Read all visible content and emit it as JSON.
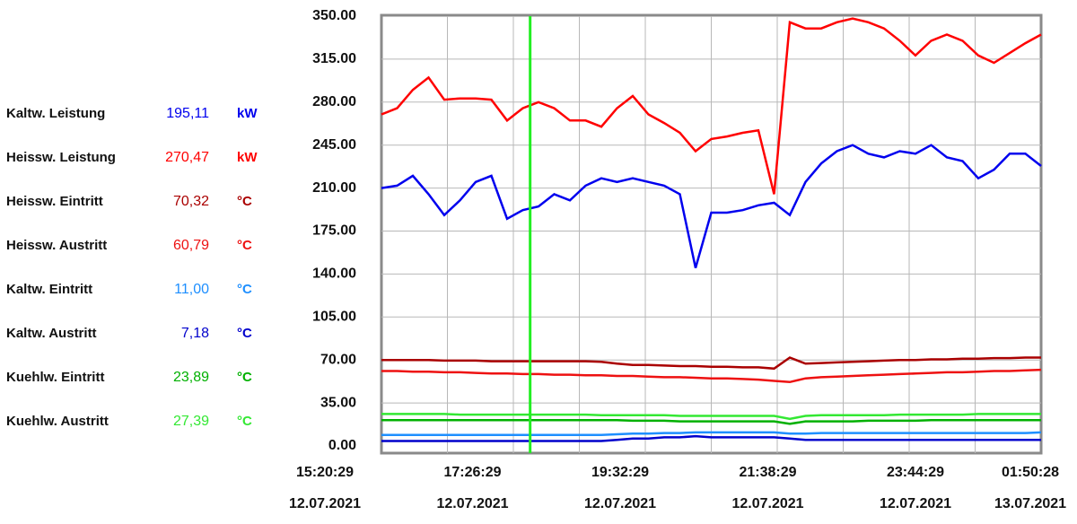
{
  "chart_data": {
    "type": "line",
    "x": [
      "12.07.2021 15:20:29",
      "12.07.2021 15:35:29",
      "12.07.2021 15:50:29",
      "12.07.2021 16:05:29",
      "12.07.2021 16:20:29",
      "12.07.2021 16:35:29",
      "12.07.2021 16:50:29",
      "12.07.2021 17:05:29",
      "12.07.2021 17:20:29",
      "12.07.2021 17:35:29",
      "12.07.2021 17:50:29",
      "12.07.2021 18:05:29",
      "12.07.2021 18:20:29",
      "12.07.2021 18:35:29",
      "12.07.2021 18:50:29",
      "12.07.2021 19:05:29",
      "12.07.2021 19:20:29",
      "12.07.2021 19:35:29",
      "12.07.2021 19:50:29",
      "12.07.2021 20:05:29",
      "12.07.2021 20:20:29",
      "12.07.2021 20:35:29",
      "12.07.2021 20:50:29",
      "12.07.2021 21:05:29",
      "12.07.2021 21:20:29",
      "12.07.2021 21:35:29",
      "12.07.2021 21:50:29",
      "12.07.2021 22:05:29",
      "12.07.2021 22:20:29",
      "12.07.2021 22:35:29",
      "12.07.2021 22:50:29",
      "12.07.2021 23:05:29",
      "12.07.2021 23:20:29",
      "12.07.2021 23:35:29",
      "12.07.2021 23:50:29",
      "13.07.2021 00:05:29",
      "13.07.2021 00:20:29",
      "13.07.2021 00:35:29",
      "13.07.2021 00:50:29",
      "13.07.2021 01:05:29",
      "13.07.2021 01:20:29",
      "13.07.2021 01:35:29",
      "13.07.2021 01:50:28"
    ],
    "series": [
      {
        "name": "Kaltw. Leistung",
        "color": "#0000ee",
        "values": [
          210,
          212,
          220,
          205,
          188,
          200,
          215,
          220,
          185,
          192,
          195,
          205,
          200,
          212,
          218,
          215,
          218,
          215,
          212,
          205,
          145,
          190,
          190,
          192,
          196,
          198,
          188,
          215,
          230,
          240,
          245,
          238,
          235,
          240,
          238,
          245,
          235,
          232,
          218,
          225,
          238,
          238,
          228
        ]
      },
      {
        "name": "Heissw. Leistung",
        "color": "#ff0000",
        "values": [
          270,
          275,
          290,
          300,
          282,
          283,
          283,
          282,
          265,
          275,
          280,
          275,
          265,
          265,
          260,
          275,
          285,
          270,
          263,
          255,
          240,
          250,
          252,
          255,
          257,
          205,
          345,
          340,
          340,
          345,
          348,
          345,
          340,
          330,
          318,
          330,
          335,
          330,
          318,
          312,
          320,
          328,
          335
        ]
      },
      {
        "name": "Heissw. Eintritt",
        "color": "#aa0000",
        "values": [
          70,
          70,
          70,
          70,
          69.5,
          69.5,
          69.5,
          69,
          69,
          69,
          69,
          69,
          69,
          69,
          68.5,
          67,
          66,
          66,
          65.5,
          65,
          65,
          64.5,
          64.5,
          64,
          64,
          63,
          72,
          67,
          67.5,
          68,
          68.5,
          69,
          69.5,
          70,
          70,
          70.5,
          70.5,
          71,
          71,
          71.5,
          71.5,
          72,
          72
        ]
      },
      {
        "name": "Heissw. Austritt",
        "color": "#ee1111",
        "values": [
          61,
          61,
          60.5,
          60.5,
          60,
          60,
          59.5,
          59,
          59,
          58.5,
          58.5,
          58,
          58,
          57.5,
          57.5,
          57,
          57,
          56.5,
          56,
          56,
          55.5,
          55,
          55,
          54.5,
          54,
          53,
          52,
          55,
          56,
          56.5,
          57,
          57.5,
          58,
          58.5,
          59,
          59.5,
          60,
          60,
          60.5,
          61,
          61,
          61.5,
          62
        ]
      },
      {
        "name": "Kaltw. Eintritt",
        "color": "#1e8fff",
        "values": [
          9,
          9,
          9,
          9,
          9,
          9,
          9,
          9,
          9,
          9,
          9,
          9,
          9,
          9,
          9,
          9.5,
          10,
          10,
          10.5,
          10.5,
          11,
          11,
          11,
          11,
          11,
          11,
          10,
          10,
          10.5,
          10.5,
          10.5,
          10.5,
          10.5,
          10.5,
          10.5,
          10.5,
          10.5,
          10.5,
          10.5,
          10.5,
          10.5,
          10.5,
          11
        ]
      },
      {
        "name": "Kaltw. Austritt",
        "color": "#0000cc",
        "values": [
          4,
          4,
          4,
          4,
          4,
          4,
          4,
          4,
          4,
          4,
          4,
          4,
          4,
          4,
          4,
          5,
          6,
          6,
          7,
          7,
          8,
          7,
          7,
          7,
          7,
          7,
          6,
          5,
          5,
          5,
          5,
          5,
          5,
          5,
          5,
          5,
          5,
          5,
          5,
          5,
          5,
          5,
          5
        ]
      },
      {
        "name": "Kuehlw. Eintritt",
        "color": "#00b000",
        "values": [
          21,
          21,
          21,
          21,
          21,
          21,
          21,
          21,
          21,
          21,
          21,
          21,
          21,
          21,
          21,
          21,
          20.5,
          20.5,
          20.5,
          20,
          20,
          20,
          20,
          20,
          20,
          20,
          18,
          20,
          20,
          20,
          20,
          20.5,
          20.5,
          20.5,
          20.5,
          21,
          21,
          21,
          21,
          21,
          21,
          21,
          21
        ]
      },
      {
        "name": "Kuehlw. Austritt",
        "color": "#33e833",
        "values": [
          26,
          26,
          26,
          26,
          26,
          25.5,
          25.5,
          25.5,
          25.5,
          25.5,
          25.5,
          25.5,
          25.5,
          25.5,
          25,
          25,
          25,
          25,
          25,
          24.5,
          24.5,
          24.5,
          24.5,
          24.5,
          24.5,
          24.5,
          22,
          24.5,
          25,
          25,
          25,
          25,
          25,
          25.5,
          25.5,
          25.5,
          25.5,
          25.5,
          26,
          26,
          26,
          26,
          26
        ]
      }
    ],
    "ylim": [
      0,
      350
    ],
    "yticks": [
      {
        "value": 0,
        "label": "0.00"
      },
      {
        "value": 35,
        "label": "35.00"
      },
      {
        "value": 70,
        "label": "70.00"
      },
      {
        "value": 105,
        "label": "105.00"
      },
      {
        "value": 140,
        "label": "140.00"
      },
      {
        "value": 175,
        "label": "175.00"
      },
      {
        "value": 210,
        "label": "210.00"
      },
      {
        "value": 245,
        "label": "245.00"
      },
      {
        "value": 280,
        "label": "280.00"
      },
      {
        "value": 315,
        "label": "315.00"
      },
      {
        "value": 350,
        "label": "350.00"
      }
    ],
    "xlim": [
      "12.07.2021 15:20:29",
      "13.07.2021 01:50:28"
    ],
    "xticks": [
      {
        "value": "12.07.2021 15:20:29",
        "label": [
          "15:20:29",
          "12.07.2021"
        ]
      },
      {
        "value": "12.07.2021 17:26:29",
        "label": [
          "17:26:29",
          "12.07.2021"
        ]
      },
      {
        "value": "12.07.2021 19:32:29",
        "label": [
          "19:32:29",
          "12.07.2021"
        ]
      },
      {
        "value": "12.07.2021 21:38:29",
        "label": [
          "21:38:29",
          "12.07.2021"
        ]
      },
      {
        "value": "12.07.2021 23:44:29",
        "label": [
          "23:44:29",
          "12.07.2021"
        ]
      },
      {
        "value": "13.07.2021 01:50:28",
        "label": [
          "01:50:28",
          "13.07.2021"
        ]
      }
    ],
    "cursor_x": "12.07.2021 17:42:29",
    "cursor_color": "#22ee22",
    "grid": true
  },
  "readouts": [
    {
      "value": "195,11",
      "unit": "kW"
    },
    {
      "value": "270,47",
      "unit": "kW"
    },
    {
      "value": "70,32",
      "unit": "°C"
    },
    {
      "value": "60,79",
      "unit": "°C"
    },
    {
      "value": "11,00",
      "unit": "°C"
    },
    {
      "value": "7,18",
      "unit": "°C"
    },
    {
      "value": "23,89",
      "unit": "°C"
    },
    {
      "value": "27,39",
      "unit": "°C"
    }
  ]
}
